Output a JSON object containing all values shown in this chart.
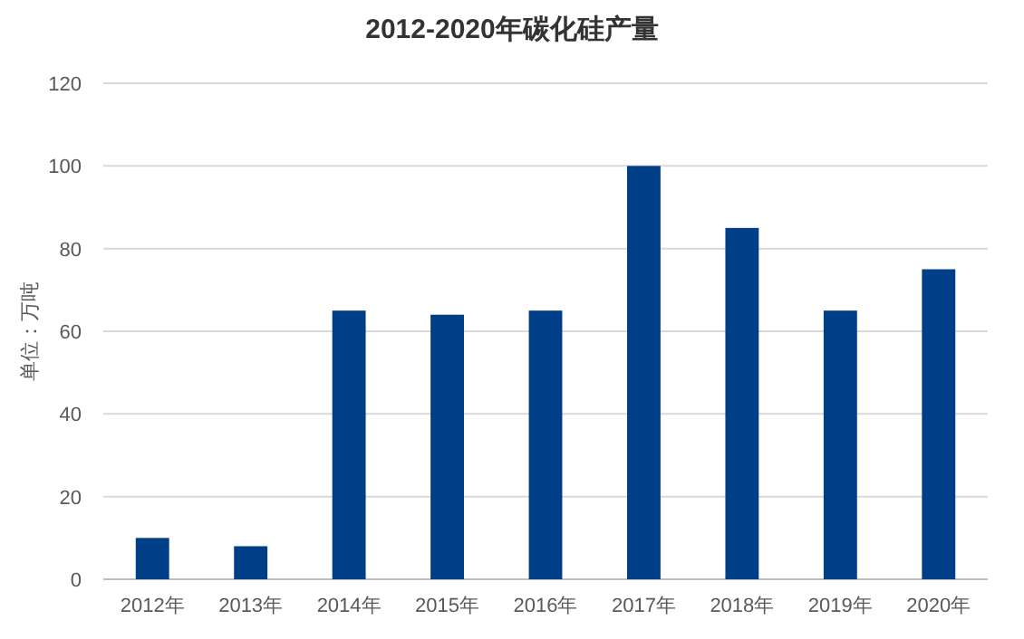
{
  "chart_data": {
    "type": "bar",
    "title": "2012-2020年碳化硅产量",
    "ylabel": "单位：万吨",
    "categories": [
      "2012年",
      "2013年",
      "2014年",
      "2015年",
      "2016年",
      "2017年",
      "2018年",
      "2019年",
      "2020年"
    ],
    "values": [
      10,
      8,
      65,
      64,
      65,
      100,
      85,
      65,
      75
    ],
    "color": "#003f88",
    "ylim": [
      0,
      120
    ],
    "yticks": [
      0,
      20,
      40,
      60,
      80,
      100,
      120
    ],
    "grid": "y"
  }
}
